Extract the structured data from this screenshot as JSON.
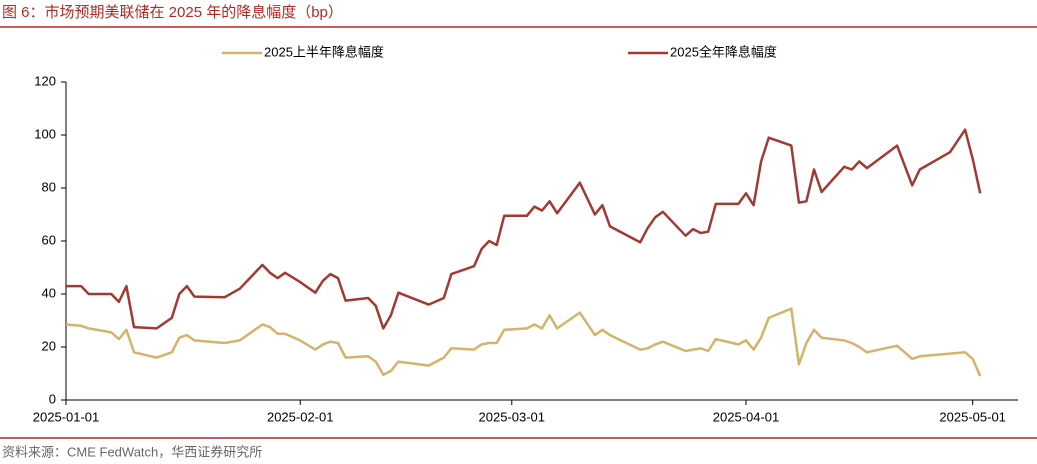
{
  "chart_data": {
    "type": "line",
    "title": "图 6：市场预期美联储在 2025 年的降息幅度（bp）",
    "source": "资料来源：CME FedWatch，华西证券研究所",
    "x": [
      "2025-01-01",
      "2025-01-03",
      "2025-01-04",
      "2025-01-07",
      "2025-01-08",
      "2025-01-09",
      "2025-01-10",
      "2025-01-13",
      "2025-01-15",
      "2025-01-16",
      "2025-01-17",
      "2025-01-18",
      "2025-01-22",
      "2025-01-24",
      "2025-01-27",
      "2025-01-28",
      "2025-01-29",
      "2025-01-30",
      "2025-02-01",
      "2025-02-03",
      "2025-02-04",
      "2025-02-05",
      "2025-02-06",
      "2025-02-07",
      "2025-02-10",
      "2025-02-11",
      "2025-02-12",
      "2025-02-13",
      "2025-02-14",
      "2025-02-18",
      "2025-02-20",
      "2025-02-21",
      "2025-02-24",
      "2025-02-25",
      "2025-02-26",
      "2025-02-27",
      "2025-02-28",
      "2025-03-03",
      "2025-03-04",
      "2025-03-05",
      "2025-03-06",
      "2025-03-07",
      "2025-03-10",
      "2025-03-12",
      "2025-03-13",
      "2025-03-14",
      "2025-03-18",
      "2025-03-19",
      "2025-03-20",
      "2025-03-21",
      "2025-03-24",
      "2025-03-25",
      "2025-03-26",
      "2025-03-27",
      "2025-03-28",
      "2025-03-31",
      "2025-04-01",
      "2025-04-02",
      "2025-04-03",
      "2025-04-04",
      "2025-04-07",
      "2025-04-08",
      "2025-04-09",
      "2025-04-10",
      "2025-04-11",
      "2025-04-14",
      "2025-04-15",
      "2025-04-16",
      "2025-04-17",
      "2025-04-21",
      "2025-04-23",
      "2025-04-24",
      "2025-04-28",
      "2025-04-30",
      "2025-05-01",
      "2025-05-02"
    ],
    "series": [
      {
        "name": "2025上半年降息幅度",
        "color": "#d4b36a",
        "values": [
          28.5,
          28,
          27,
          25.5,
          23,
          26.5,
          18,
          16,
          18,
          23.5,
          24.5,
          22.5,
          21.5,
          22.5,
          28.5,
          27.5,
          25,
          25,
          22.5,
          19,
          21,
          22,
          21.5,
          16,
          16.5,
          14.5,
          9.5,
          11,
          14.5,
          13,
          16,
          19.5,
          19,
          21,
          21.5,
          21.5,
          26.5,
          27,
          28.5,
          27,
          32,
          27,
          33,
          24.5,
          26.5,
          24.5,
          19,
          19.5,
          21,
          22,
          18.5,
          19,
          19.5,
          18.5,
          23,
          21,
          22.5,
          19,
          23.5,
          31,
          34.5,
          13.5,
          21.5,
          26.5,
          23.5,
          22.5,
          21.5,
          20,
          18,
          20.5,
          15.5,
          16.5,
          17.5,
          18,
          15.5,
          9
        ]
      },
      {
        "name": "2025全年降息幅度",
        "color": "#a33a32",
        "values": [
          43,
          43,
          40,
          40,
          37,
          43,
          27.5,
          27,
          31,
          40,
          43,
          39,
          38.8,
          42,
          51,
          48,
          46,
          48,
          44.5,
          40.5,
          45,
          47.5,
          46,
          37.5,
          38.5,
          35.5,
          27,
          32,
          40.5,
          36,
          38.5,
          47.5,
          50.5,
          57,
          60,
          58.5,
          69.5,
          69.5,
          73,
          71.5,
          75,
          70.5,
          82,
          70,
          73.5,
          65.5,
          59.5,
          65,
          69,
          71,
          62,
          64.5,
          63,
          63.5,
          74,
          74,
          78,
          73.5,
          90,
          99,
          96,
          74.5,
          75,
          87,
          78.5,
          88,
          87,
          90,
          87.5,
          96,
          81,
          87,
          93.5,
          102,
          91,
          78
        ]
      }
    ],
    "xlim": [
      "2025-01-01",
      "2025-05-07"
    ],
    "xticks": [
      "2025-01-01",
      "2025-02-01",
      "2025-03-01",
      "2025-04-01",
      "2025-05-01"
    ],
    "ylim": [
      0,
      120
    ],
    "yticks": [
      0,
      20,
      40,
      60,
      80,
      100,
      120
    ],
    "grid": false,
    "legend": "top"
  }
}
